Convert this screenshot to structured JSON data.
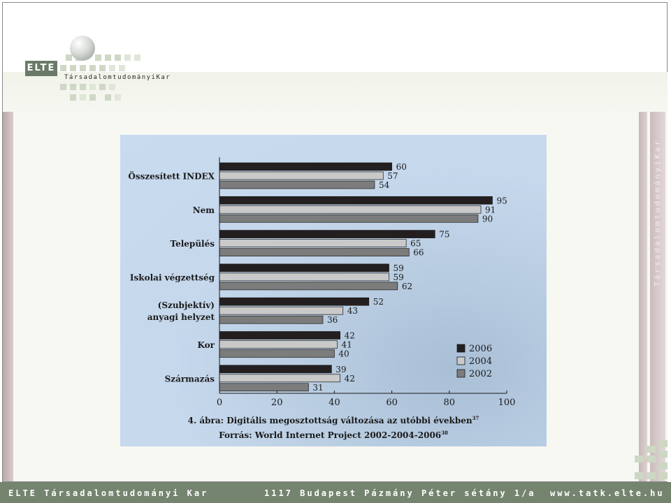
{
  "header": {
    "logo_abbr": "ELTE",
    "logo_faculty": "TársadalomtudományiKar"
  },
  "side": {
    "vertical_text": "TársadalomtudományiKar"
  },
  "chart_data": {
    "type": "bar",
    "orientation": "horizontal",
    "categories": [
      "Összesített INDEX",
      "Nem",
      "Település",
      "Iskolai végzettség",
      "(Szubjektív)\nanyagi helyzet",
      "Kor",
      "Származás"
    ],
    "series": [
      {
        "name": "2006",
        "color": "#231f20",
        "values": [
          60,
          95,
          75,
          59,
          52,
          42,
          39
        ]
      },
      {
        "name": "2004",
        "color": "#c9c9c9",
        "values": [
          57,
          91,
          65,
          59,
          43,
          41,
          42
        ]
      },
      {
        "name": "2002",
        "color": "#7c7c7c",
        "values": [
          54,
          90,
          66,
          62,
          36,
          40,
          31
        ]
      }
    ],
    "xlim": [
      0,
      100
    ],
    "xticks": [
      0,
      20,
      40,
      60,
      80,
      100
    ],
    "grid": false,
    "legend_position": "bottom-right",
    "caption_main": "4. ábra: Digitális megosztottság változása az utóbbi években",
    "caption_main_sup": "37",
    "caption_source": "Forrás: World Internet Project 2002-2004-2006",
    "caption_source_sup": "38"
  },
  "footer": {
    "left": "ELTE Társadalomtudományi Kar",
    "center": "1117 Budapest Pázmány Péter sétány 1/a",
    "right": "www.tatk.elte.hu"
  }
}
